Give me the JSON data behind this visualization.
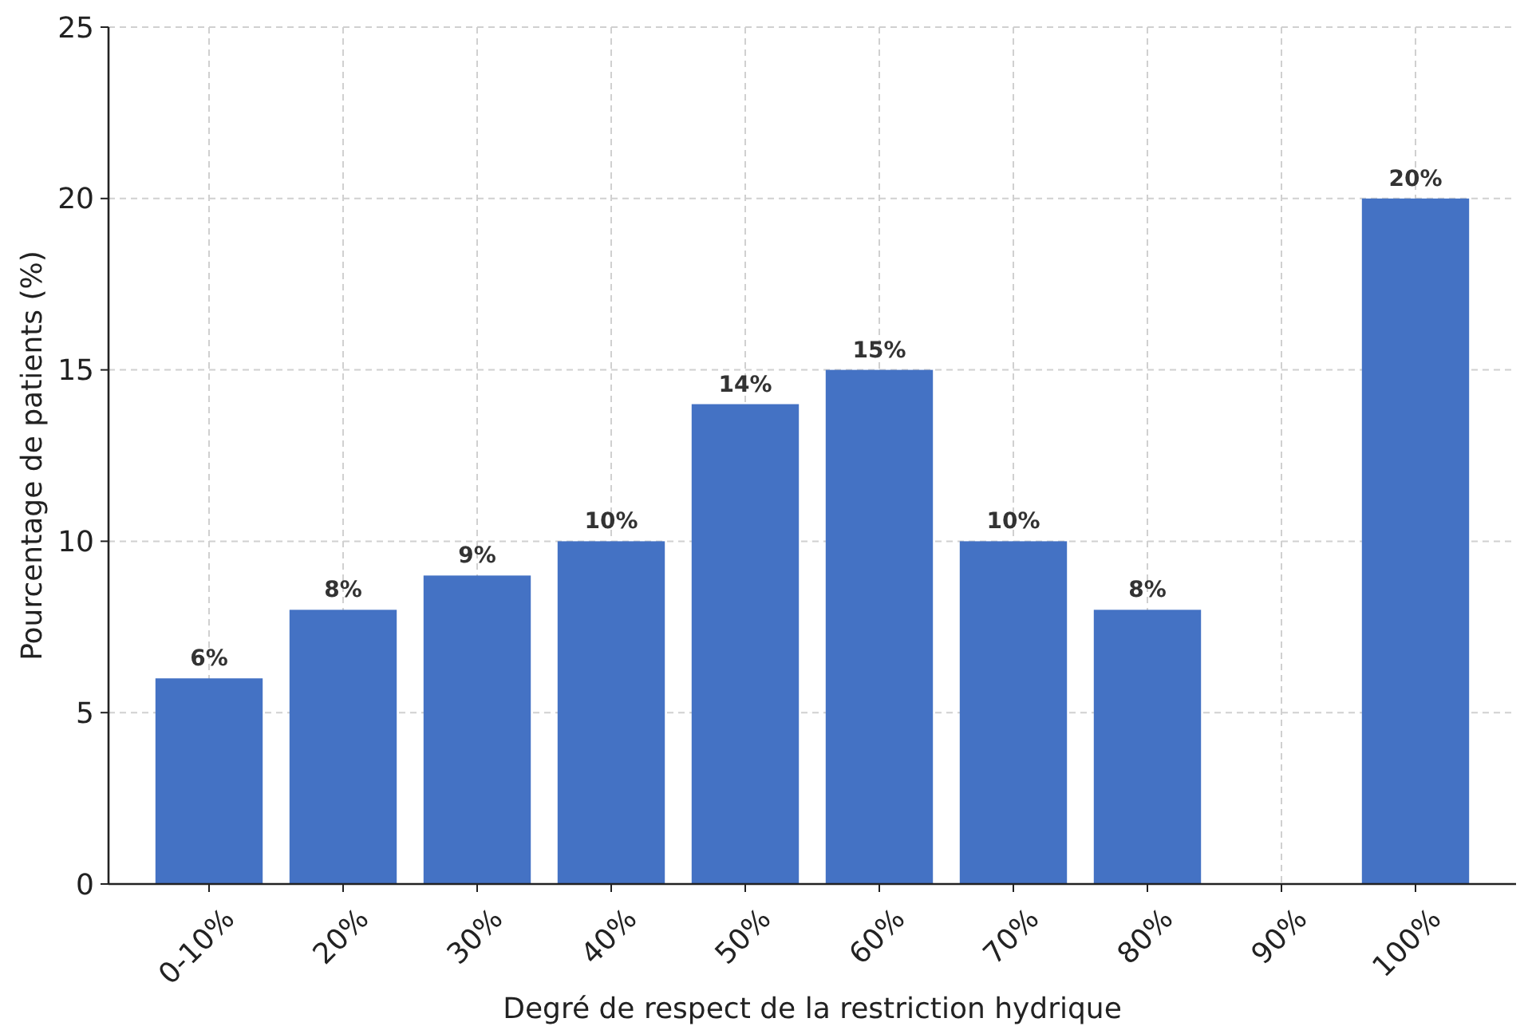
{
  "chart_data": {
    "type": "bar",
    "xlabel": "Degré de respect de la restriction hydrique",
    "ylabel": "Pourcentage de patients (%)",
    "categories": [
      "0-10%",
      "20%",
      "30%",
      "40%",
      "50%",
      "60%",
      "70%",
      "80%",
      "90%",
      "100%"
    ],
    "values": [
      6,
      8,
      9,
      10,
      14,
      15,
      10,
      8,
      0,
      20
    ],
    "value_labels": [
      "6%",
      "8%",
      "9%",
      "10%",
      "14%",
      "15%",
      "10%",
      "8%",
      null,
      "20%"
    ],
    "color": "#4472c4",
    "ylim": [
      0,
      25
    ],
    "yticks": [
      0,
      5,
      10,
      15,
      20,
      25
    ],
    "grid": true
  }
}
